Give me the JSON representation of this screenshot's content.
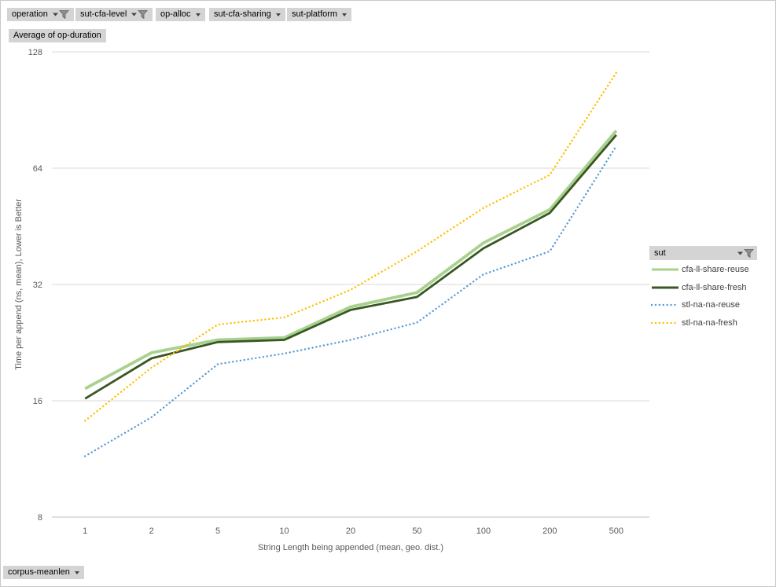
{
  "filters": {
    "top": [
      {
        "label": "operation",
        "filtered": true
      },
      {
        "label": "sut-cfa-level",
        "filtered": true
      },
      {
        "label": "op-alloc",
        "filtered": false
      },
      {
        "label": "sut-cfa-sharing",
        "filtered": false
      },
      {
        "label": "sut-platform",
        "filtered": false
      }
    ],
    "bottom": [
      {
        "label": "corpus-meanlen",
        "filtered": false
      }
    ]
  },
  "value_button": {
    "label": "Average of op-duration"
  },
  "legend": {
    "header": "sut",
    "filtered": true,
    "position": "right"
  },
  "chart_data": {
    "type": "line",
    "x_scale": "categorical",
    "y_scale": "log2",
    "categories": [
      "1",
      "2",
      "5",
      "10",
      "20",
      "50",
      "100",
      "200",
      "500"
    ],
    "series": [
      {
        "name": "cfa-ll-share-reuse",
        "color": "#A9D18E",
        "dash": "solid",
        "values": [
          17.2,
          21.3,
          23.0,
          23.3,
          28.0,
          30.5,
          41.0,
          50.0,
          80.0
        ]
      },
      {
        "name": "cfa-ll-share-fresh",
        "color": "#385723",
        "dash": "solid",
        "values": [
          16.2,
          20.6,
          22.7,
          23.0,
          27.5,
          29.7,
          39.7,
          49.0,
          78.0
        ]
      },
      {
        "name": "stl-na-na-reuse",
        "color": "#5B9BD5",
        "dash": "dotted",
        "values": [
          11.5,
          14.5,
          19.9,
          21.2,
          23.0,
          25.5,
          34.0,
          39.0,
          73.0
        ]
      },
      {
        "name": "stl-na-na-fresh",
        "color": "#FFC000",
        "dash": "dotted",
        "values": [
          14.2,
          19.5,
          25.2,
          26.3,
          31.0,
          39.0,
          50.5,
          61.5,
          113.0
        ]
      }
    ],
    "title": "",
    "xlabel": "String Length being appended (mean, geo. dist.)",
    "ylabel": "Time per append (ns, mean), Lower is Better",
    "yticks": [
      128,
      64,
      32,
      16,
      8
    ],
    "ylim": [
      8,
      128
    ],
    "grid": true,
    "legend_position": "right"
  },
  "colors": {
    "button_bg": "#d4d4d4",
    "gridline": "#d9d9d9",
    "axis_line": "#bfbfbf",
    "axis_text": "#595959",
    "legend_text": "#3f3f3f"
  }
}
